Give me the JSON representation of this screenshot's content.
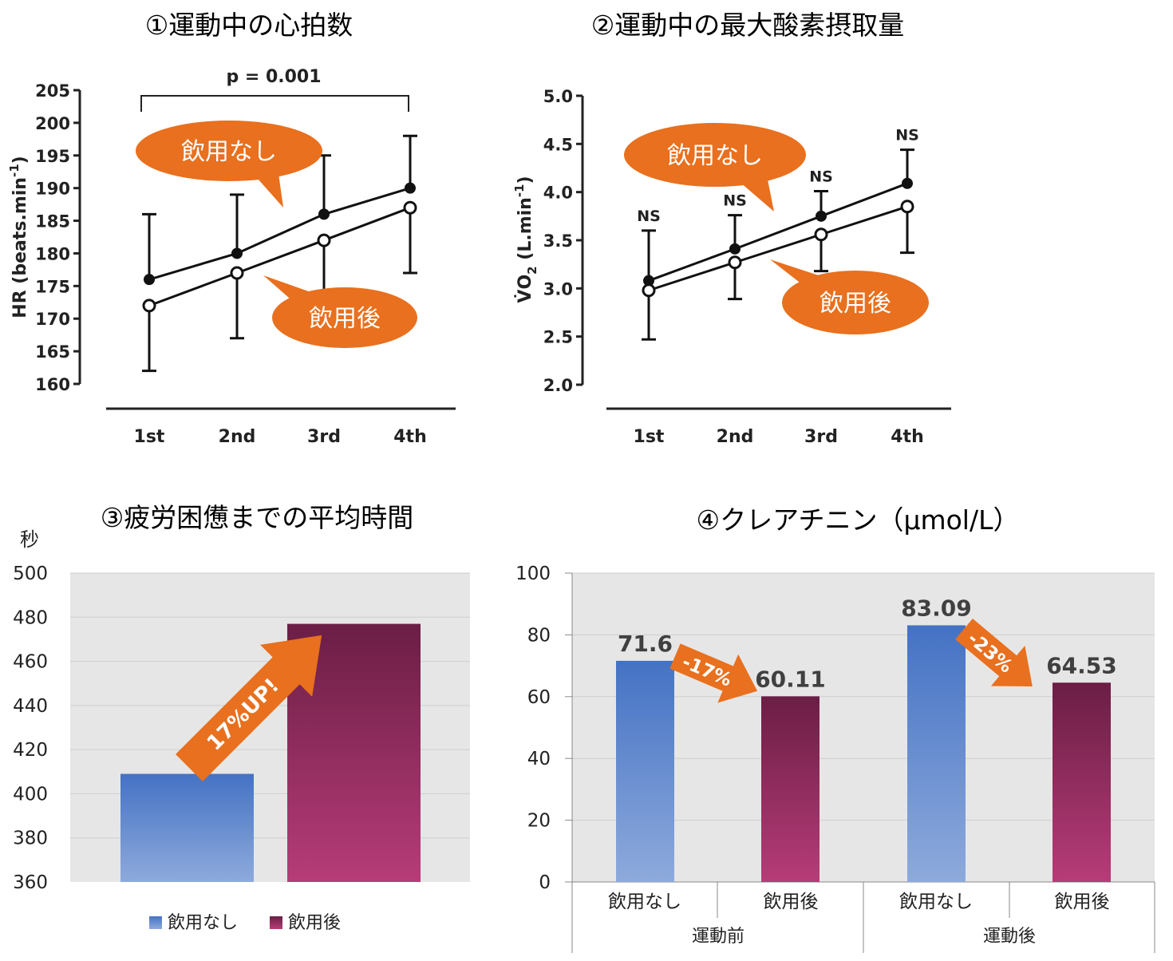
{
  "chart_data": [
    {
      "type": "line",
      "title": "①運動中の心拍数",
      "ylabel": "HR (beats.min",
      "ylabel_sup": "-1",
      "ylabel_close": ")",
      "ylim": [
        160,
        205
      ],
      "yticks": [
        160,
        165,
        170,
        175,
        180,
        185,
        190,
        195,
        200,
        205
      ],
      "categories": [
        "1st",
        "2nd",
        "3rd",
        "4th"
      ],
      "significance": "p = 0.001",
      "series": [
        {
          "name": "飲用なし",
          "marker": "filled",
          "values": [
            176,
            180,
            186,
            190
          ],
          "err_upper": [
            186,
            189,
            195,
            198
          ]
        },
        {
          "name": "飲用後",
          "marker": "open",
          "values": [
            172,
            177,
            182,
            187
          ],
          "err_lower": [
            162,
            167,
            174,
            177
          ]
        }
      ],
      "callouts": [
        "飲用なし",
        "飲用後"
      ]
    },
    {
      "type": "line",
      "title": "②運動中の最大酸素摂取量",
      "ylabel": "V̇O",
      "ylabel_sub": "2",
      "ylabel_unit": " (L.min",
      "ylabel_sup": "-1",
      "ylabel_close": ")",
      "ylim": [
        2.0,
        5.0
      ],
      "yticks": [
        "2.0",
        "2.5",
        "3.0",
        "3.5",
        "4.0",
        "4.5",
        "5.0"
      ],
      "categories": [
        "1st",
        "2nd",
        "3rd",
        "4th"
      ],
      "annotations": [
        "NS",
        "NS",
        "NS",
        "NS"
      ],
      "series": [
        {
          "name": "飲用なし",
          "marker": "filled",
          "values": [
            3.08,
            3.41,
            3.75,
            4.09
          ],
          "err_upper": [
            3.6,
            3.76,
            4.01,
            4.44
          ]
        },
        {
          "name": "飲用後",
          "marker": "open",
          "values": [
            2.98,
            3.27,
            3.56,
            3.85
          ],
          "err_lower": [
            2.47,
            2.89,
            3.18,
            3.37
          ]
        }
      ],
      "callouts": [
        "飲用なし",
        "飲用後"
      ]
    },
    {
      "type": "bar",
      "title": "③疲労困憊までの平均時間",
      "ylabel": "秒",
      "ylim": [
        360,
        500
      ],
      "yticks": [
        360,
        380,
        400,
        420,
        440,
        460,
        480,
        500
      ],
      "categories": [
        "飲用なし",
        "飲用後"
      ],
      "values": [
        409,
        477
      ],
      "legend": [
        "飲用なし",
        "飲用後"
      ],
      "annotation": "17%UP!"
    },
    {
      "type": "bar",
      "title": "④クレアチニン（μmol/L）",
      "ylim": [
        0,
        100
      ],
      "yticks": [
        0,
        20,
        40,
        60,
        80,
        100
      ],
      "categories": [
        "飲用なし",
        "飲用後",
        "飲用なし",
        "飲用後"
      ],
      "groups": [
        "運動前",
        "運動後"
      ],
      "values": [
        71.6,
        60.11,
        83.09,
        64.53
      ],
      "value_labels": [
        "71.6",
        "60.11",
        "83.09",
        "64.53"
      ],
      "annotations": [
        "-17%",
        "-23%"
      ]
    }
  ],
  "colors": {
    "accent": "#E8701E",
    "blue_top": "#4472C4",
    "blue_bottom": "#8EAADC",
    "maroon_top": "#6B1E45",
    "maroon_bottom": "#B63C78",
    "plot_bg": "#E7E6E6"
  }
}
